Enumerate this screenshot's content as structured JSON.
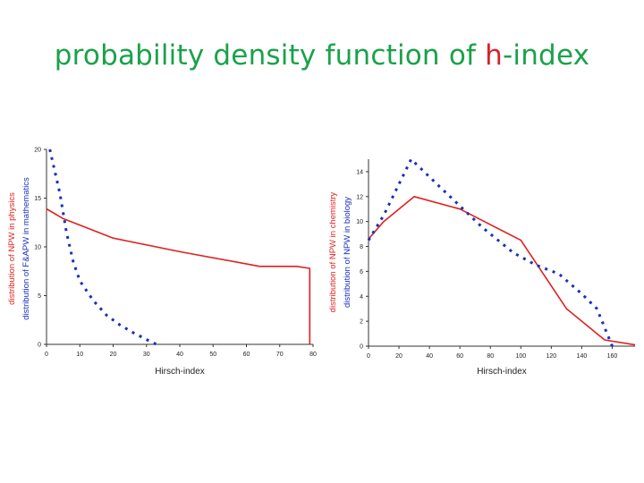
{
  "slide": {
    "title_prefix": "probability density function of ",
    "title_highlight": "h",
    "title_suffix": "-index",
    "title_color": "#1aa24a",
    "highlight_color": "#d9212a"
  },
  "chart_data": [
    {
      "type": "line",
      "xlabel": "Hirsch-index",
      "ylabel_series": [
        "distribution of NPW in physics",
        "distribution of F&APW in mathematics"
      ],
      "xlim": [
        0,
        80
      ],
      "ylim": [
        0,
        20
      ],
      "xticks": [
        0,
        10,
        20,
        30,
        40,
        50,
        60,
        70,
        80
      ],
      "yticks": [
        0,
        5,
        10,
        15,
        20
      ],
      "grid": false,
      "series": [
        {
          "name": "distribution of NPW in physics",
          "color": "#e02020",
          "style": "solid",
          "x": [
            0,
            5,
            20,
            40,
            64,
            75,
            79,
            79
          ],
          "y": [
            13.9,
            12.9,
            10.9,
            9.5,
            8.0,
            8.0,
            7.8,
            0
          ]
        },
        {
          "name": "distribution of F&APW in mathematics",
          "color": "#1a2fb8",
          "style": "dotted",
          "x": [
            1,
            4,
            6,
            8,
            10,
            14,
            18,
            22,
            26,
            30,
            33
          ],
          "y": [
            20,
            15.5,
            11.5,
            8.5,
            6.5,
            4.5,
            3.0,
            2.0,
            1.2,
            0.5,
            0
          ]
        }
      ]
    },
    {
      "type": "line",
      "xlabel": "Hirsch-index",
      "ylabel_series": [
        "distribution of NPW in chemistry",
        "distribution of NPW in biology"
      ],
      "xlim": [
        0,
        175
      ],
      "ylim": [
        0,
        15
      ],
      "xticks": [
        0,
        20,
        40,
        60,
        80,
        100,
        120,
        140,
        160
      ],
      "yticks": [
        0,
        2,
        4,
        6,
        8,
        10,
        12,
        14
      ],
      "grid": false,
      "series": [
        {
          "name": "distribution of NPW in chemistry",
          "color": "#e02020",
          "style": "solid",
          "x": [
            0,
            10,
            30,
            60,
            100,
            130,
            155,
            175
          ],
          "y": [
            8.6,
            10.0,
            12.0,
            11.0,
            8.5,
            3.0,
            0.5,
            0.1
          ]
        },
        {
          "name": "distribution of NPW in biology",
          "color": "#1a2fb8",
          "style": "dotted",
          "x": [
            0,
            10,
            28,
            45,
            75,
            95,
            110,
            125,
            140,
            150,
            155,
            160
          ],
          "y": [
            8.5,
            10.5,
            15.0,
            13.0,
            9.5,
            7.5,
            6.5,
            5.8,
            4.2,
            3.0,
            1.5,
            0
          ]
        }
      ]
    }
  ]
}
